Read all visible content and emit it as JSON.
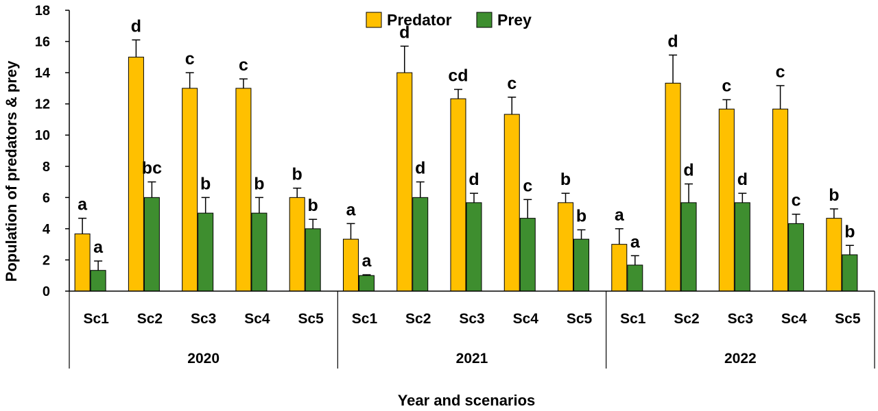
{
  "chart_data": {
    "type": "bar",
    "title": "",
    "xlabel": "Year and scenarios",
    "ylabel": "Population of predators & prey",
    "ylim": [
      0,
      18
    ],
    "yticks": [
      0,
      2,
      4,
      6,
      8,
      10,
      12,
      14,
      16,
      18
    ],
    "grid": false,
    "legend_position": "top-center",
    "groups": [
      {
        "label": "2020",
        "categories": [
          "Sc1",
          "Sc2",
          "Sc3",
          "Sc4",
          "Sc5"
        ]
      },
      {
        "label": "2021",
        "categories": [
          "Sc1",
          "Sc2",
          "Sc3",
          "Sc4",
          "Sc5"
        ]
      },
      {
        "label": "2022",
        "categories": [
          "Sc1",
          "Sc2",
          "Sc3",
          "Sc4",
          "Sc5"
        ]
      }
    ],
    "series": [
      {
        "name": "Predator",
        "color": "#FFC000",
        "values": [
          3.67,
          15.0,
          13.0,
          13.0,
          6.0,
          3.33,
          14.0,
          12.33,
          11.33,
          5.67,
          3.0,
          13.33,
          11.67,
          11.67,
          4.67
        ],
        "errors": [
          1.0,
          1.1,
          1.0,
          0.6,
          0.6,
          1.0,
          1.7,
          0.6,
          1.1,
          0.6,
          1.0,
          1.8,
          0.6,
          1.5,
          0.6
        ],
        "letters": [
          "a",
          "d",
          "c",
          "c",
          "b",
          "a",
          "d",
          "cd",
          "c",
          "b",
          "a",
          "d",
          "c",
          "c",
          "b"
        ]
      },
      {
        "name": "Prey",
        "color": "#3E8E2F",
        "values": [
          1.33,
          6.0,
          5.0,
          5.0,
          4.0,
          1.0,
          6.0,
          5.67,
          4.67,
          3.33,
          1.67,
          5.67,
          5.67,
          4.33,
          2.33
        ],
        "errors": [
          0.6,
          1.0,
          1.0,
          1.0,
          0.6,
          0.05,
          1.0,
          0.6,
          1.2,
          0.6,
          0.6,
          1.2,
          0.6,
          0.6,
          0.6
        ],
        "letters": [
          "a",
          "bc",
          "b",
          "b",
          "b",
          "a",
          "d",
          "d",
          "c",
          "b",
          "a",
          "d",
          "d",
          "c",
          "b"
        ]
      }
    ]
  }
}
